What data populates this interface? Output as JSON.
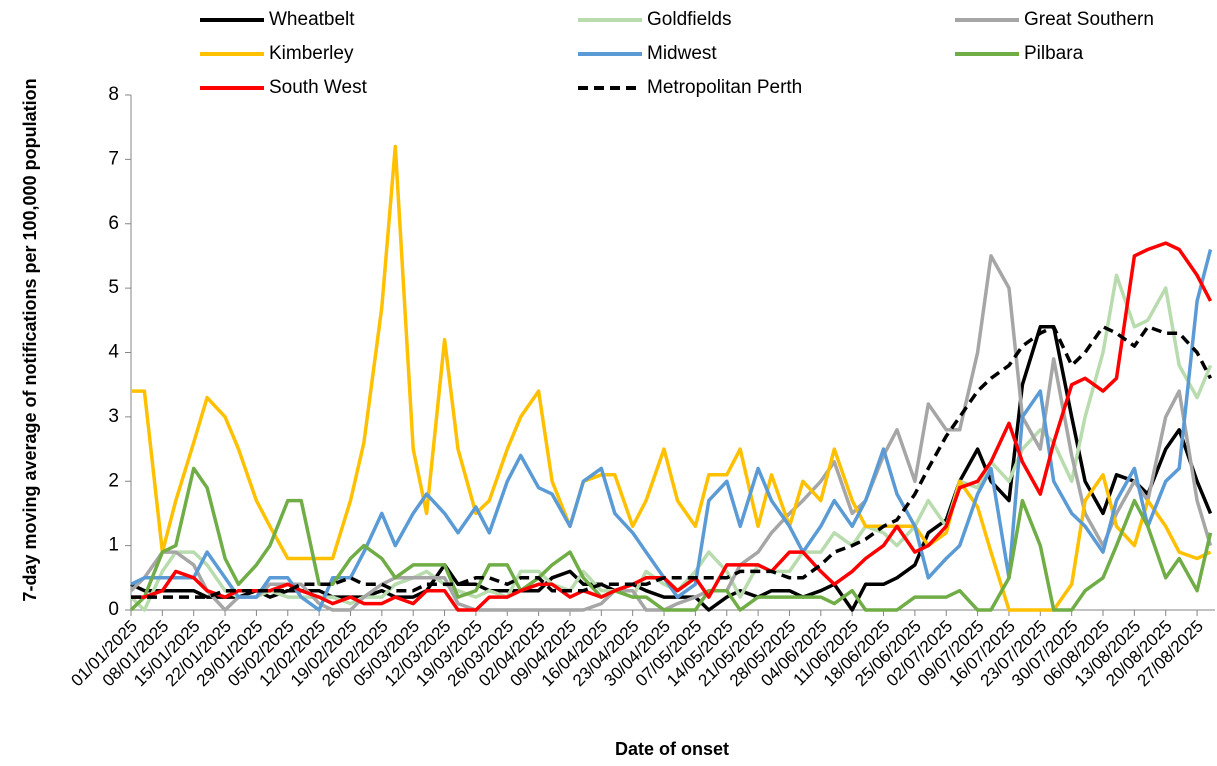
{
  "chart_data": {
    "type": "line",
    "x_label": "Date of onset",
    "y_label": "7-day moving average of notifications per 100,000 population",
    "x": [
      "01/01/2025",
      "04/01/2025",
      "08/01/2025",
      "11/01/2025",
      "15/01/2025",
      "18/01/2025",
      "22/01/2025",
      "25/01/2025",
      "29/01/2025",
      "01/02/2025",
      "05/02/2025",
      "08/02/2025",
      "12/02/2025",
      "15/02/2025",
      "19/02/2025",
      "22/02/2025",
      "26/02/2025",
      "01/03/2025",
      "05/03/2025",
      "08/03/2025",
      "12/03/2025",
      "15/03/2025",
      "19/03/2025",
      "22/03/2025",
      "26/03/2025",
      "29/03/2025",
      "02/04/2025",
      "05/04/2025",
      "09/04/2025",
      "12/04/2025",
      "16/04/2025",
      "19/04/2025",
      "23/04/2025",
      "26/04/2025",
      "30/04/2025",
      "03/05/2025",
      "07/05/2025",
      "10/05/2025",
      "14/05/2025",
      "17/05/2025",
      "21/05/2025",
      "24/05/2025",
      "28/05/2025",
      "31/05/2025",
      "04/06/2025",
      "07/06/2025",
      "11/06/2025",
      "14/06/2025",
      "18/06/2025",
      "21/06/2025",
      "25/06/2025",
      "28/06/2025",
      "02/07/2025",
      "05/07/2025",
      "09/07/2025",
      "12/07/2025",
      "16/07/2025",
      "19/07/2025",
      "23/07/2025",
      "26/07/2025",
      "30/07/2025",
      "02/08/2025",
      "06/08/2025",
      "09/08/2025",
      "13/08/2025",
      "16/08/2025",
      "20/08/2025",
      "23/08/2025",
      "27/08/2025",
      "30/08/2025"
    ],
    "xlim": [
      "01/01/2025",
      "31/08/2025"
    ],
    "xticks": [
      "01/01/2025",
      "08/01/2025",
      "15/01/2025",
      "22/01/2025",
      "29/01/2025",
      "05/02/2025",
      "12/02/2025",
      "19/02/2025",
      "26/02/2025",
      "05/03/2025",
      "12/03/2025",
      "19/03/2025",
      "26/03/2025",
      "02/04/2025",
      "09/04/2025",
      "16/04/2025",
      "23/04/2025",
      "30/04/2025",
      "07/05/2025",
      "14/05/2025",
      "21/05/2025",
      "28/05/2025",
      "04/06/2025",
      "11/06/2025",
      "18/06/2025",
      "25/06/2025",
      "02/07/2025",
      "09/07/2025",
      "16/07/2025",
      "23/07/2025",
      "30/07/2025",
      "06/08/2025",
      "13/08/2025",
      "20/08/2025",
      "27/08/2025"
    ],
    "ylim": [
      0,
      8
    ],
    "yticks": [
      0,
      1,
      2,
      3,
      4,
      5,
      6,
      7,
      8
    ],
    "legend": "top",
    "series": [
      {
        "name": "Wheatbelt",
        "color": "#000000",
        "values": [
          0.4,
          0.3,
          0.3,
          0.3,
          0.3,
          0.2,
          0.2,
          0.2,
          0.3,
          0.2,
          0.3,
          0.3,
          0.3,
          0.2,
          0.2,
          0.2,
          0.3,
          0.2,
          0.2,
          0.3,
          0.7,
          0.4,
          0.4,
          0.3,
          0.3,
          0.3,
          0.3,
          0.5,
          0.6,
          0.4,
          0.4,
          0.3,
          0.4,
          0.3,
          0.2,
          0.2,
          0.2,
          0.0,
          0.2,
          0.3,
          0.2,
          0.3,
          0.3,
          0.2,
          0.3,
          0.4,
          0.0,
          0.4,
          0.4,
          0.5,
          0.7,
          1.2,
          1.4,
          2.0,
          2.5,
          2.0,
          1.7,
          3.5,
          4.4,
          4.4,
          3.0,
          2.0,
          1.5,
          2.1,
          2.0,
          1.8,
          2.5,
          2.8,
          2.0,
          1.5
        ]
      },
      {
        "name": "Goldfields",
        "color": "#b8dcae",
        "values": [
          0.2,
          0,
          0.6,
          0.9,
          0.9,
          0.7,
          0.3,
          0.2,
          0.2,
          0.3,
          0.2,
          0.2,
          0.2,
          0.2,
          0.1,
          0.2,
          0.2,
          0.4,
          0.5,
          0.6,
          0.4,
          0.3,
          0.2,
          0.3,
          0.2,
          0.6,
          0.6,
          0.4,
          0.3,
          0.6,
          0.3,
          0.3,
          0.2,
          0.6,
          0.4,
          0.3,
          0.6,
          0.9,
          0.6,
          0.2,
          0.7,
          0.6,
          0.6,
          0.9,
          0.9,
          1.2,
          1.0,
          1.3,
          1.2,
          1.0,
          1.3,
          1.7,
          1.3,
          2.0,
          1.9,
          2.3,
          2.0,
          2.5,
          2.8,
          2.6,
          2.0,
          3.0,
          4.0,
          5.2,
          4.4,
          4.5,
          5.0,
          3.8,
          3.3,
          3.8
        ]
      },
      {
        "name": "Great Southern",
        "color": "#a6a6a6",
        "values": [
          0.3,
          0.5,
          0.9,
          0.9,
          0.7,
          0.3,
          0,
          0.2,
          0.2,
          0.4,
          0.4,
          0.4,
          0.1,
          0,
          0,
          0.2,
          0.4,
          0.5,
          0.5,
          0.5,
          0.5,
          0.1,
          0,
          0,
          0,
          0,
          0,
          0,
          0,
          0,
          0.1,
          0.3,
          0.3,
          0,
          0,
          0.1,
          0.2,
          0.3,
          0.3,
          0.7,
          0.9,
          1.2,
          1.5,
          1.7,
          2.0,
          2.3,
          1.5,
          1.7,
          2.4,
          2.8,
          2.0,
          3.2,
          2.8,
          2.8,
          4.0,
          5.5,
          5.0,
          3.0,
          2.5,
          3.9,
          2.4,
          1.5,
          1.0,
          1.5,
          2.0,
          1.7,
          3.0,
          3.4,
          1.7,
          1.0
        ]
      },
      {
        "name": "Kimberley",
        "color": "#ffc000",
        "values": [
          3.4,
          3.4,
          0.9,
          1.7,
          2.6,
          3.3,
          3.0,
          2.5,
          1.7,
          1.3,
          0.8,
          0.8,
          0.8,
          0.8,
          1.7,
          2.6,
          4.7,
          7.2,
          2.5,
          1.5,
          4.2,
          2.5,
          1.5,
          1.7,
          2.5,
          3.0,
          3.4,
          2.0,
          1.3,
          2.0,
          2.1,
          2.1,
          1.3,
          1.7,
          2.5,
          1.7,
          1.3,
          2.1,
          2.1,
          2.5,
          1.3,
          2.1,
          1.3,
          2.0,
          1.7,
          2.5,
          1.7,
          1.3,
          1.3,
          1.3,
          1.3,
          1.0,
          1.2,
          2.0,
          1.6,
          0.9,
          0,
          0,
          0,
          0,
          0.4,
          1.7,
          2.1,
          1.3,
          1.0,
          1.7,
          1.3,
          0.9,
          0.8,
          0.9
        ]
      },
      {
        "name": "Midwest",
        "color": "#5b9bd5",
        "values": [
          0.4,
          0.5,
          0.5,
          0.5,
          0.5,
          0.9,
          0.5,
          0.2,
          0.2,
          0.5,
          0.5,
          0.2,
          0,
          0.5,
          0.5,
          0.9,
          1.5,
          1.0,
          1.5,
          1.8,
          1.5,
          1.2,
          1.6,
          1.2,
          2.0,
          2.4,
          1.9,
          1.8,
          1.3,
          2.0,
          2.2,
          1.5,
          1.2,
          0.9,
          0.5,
          0.2,
          0.4,
          1.7,
          2.0,
          1.3,
          2.2,
          1.7,
          1.3,
          0.9,
          1.3,
          1.7,
          1.3,
          1.7,
          2.5,
          1.8,
          1.3,
          0.5,
          0.8,
          1.0,
          1.8,
          2.2,
          0.5,
          3.0,
          3.4,
          2.0,
          1.5,
          1.3,
          0.9,
          1.7,
          2.2,
          1.3,
          2.0,
          2.2,
          4.8,
          5.6
        ]
      },
      {
        "name": "Pilbara",
        "color": "#70ad47",
        "values": [
          0,
          0.2,
          0.9,
          1.0,
          2.2,
          1.9,
          0.8,
          0.4,
          0.7,
          1.0,
          1.7,
          1.7,
          0.4,
          0.4,
          0.8,
          1.0,
          0.8,
          0.5,
          0.7,
          0.7,
          0.7,
          0.2,
          0.3,
          0.7,
          0.7,
          0.3,
          0.5,
          0.7,
          0.9,
          0.5,
          0.2,
          0.3,
          0.2,
          0.2,
          0,
          0,
          0,
          0.3,
          0.3,
          0,
          0.2,
          0.2,
          0.2,
          0.2,
          0.2,
          0.1,
          0.3,
          0,
          0,
          0,
          0.2,
          0.2,
          0.2,
          0.3,
          0.0,
          0.0,
          0.5,
          1.7,
          1.0,
          0,
          0,
          0.3,
          0.5,
          1.0,
          1.7,
          1.3,
          0.5,
          0.8,
          0.3,
          1.2
        ]
      },
      {
        "name": "South West",
        "color": "#ff0000",
        "values": [
          0.2,
          0.2,
          0.3,
          0.6,
          0.5,
          0.3,
          0.2,
          0.3,
          0.3,
          0.3,
          0.4,
          0.3,
          0.2,
          0.1,
          0.2,
          0.1,
          0.1,
          0.2,
          0.1,
          0.3,
          0.3,
          0,
          0,
          0.2,
          0.2,
          0.3,
          0.4,
          0.4,
          0.2,
          0.3,
          0.2,
          0.3,
          0.4,
          0.5,
          0.5,
          0.3,
          0.5,
          0.2,
          0.7,
          0.7,
          0.7,
          0.6,
          0.9,
          0.9,
          0.6,
          0.4,
          0.6,
          0.8,
          1.0,
          1.3,
          0.9,
          1.0,
          1.3,
          1.9,
          2.0,
          2.3,
          2.9,
          2.3,
          1.8,
          2.6,
          3.5,
          3.6,
          3.4,
          3.6,
          5.5,
          5.6,
          5.7,
          5.6,
          5.2,
          4.8
        ]
      },
      {
        "name": "Metropolitan Perth",
        "color": "#000000",
        "dash": true,
        "values": [
          0.2,
          0.2,
          0.2,
          0.2,
          0.2,
          0.2,
          0.3,
          0.3,
          0.3,
          0.3,
          0.3,
          0.4,
          0.4,
          0.4,
          0.5,
          0.4,
          0.4,
          0.3,
          0.3,
          0.4,
          0.4,
          0.4,
          0.5,
          0.5,
          0.4,
          0.5,
          0.5,
          0.3,
          0.3,
          0.3,
          0.4,
          0.4,
          0.4,
          0.4,
          0.5,
          0.5,
          0.5,
          0.5,
          0.5,
          0.6,
          0.6,
          0.6,
          0.5,
          0.5,
          0.7,
          0.9,
          1.0,
          1.1,
          1.3,
          1.4,
          1.8,
          2.2,
          2.7,
          3.0,
          3.4,
          3.6,
          3.8,
          4.1,
          4.3,
          4.4,
          3.8,
          4.0,
          4.4,
          4.3,
          4.1,
          4.4,
          4.3,
          4.3,
          4.0,
          3.6
        ]
      }
    ]
  }
}
